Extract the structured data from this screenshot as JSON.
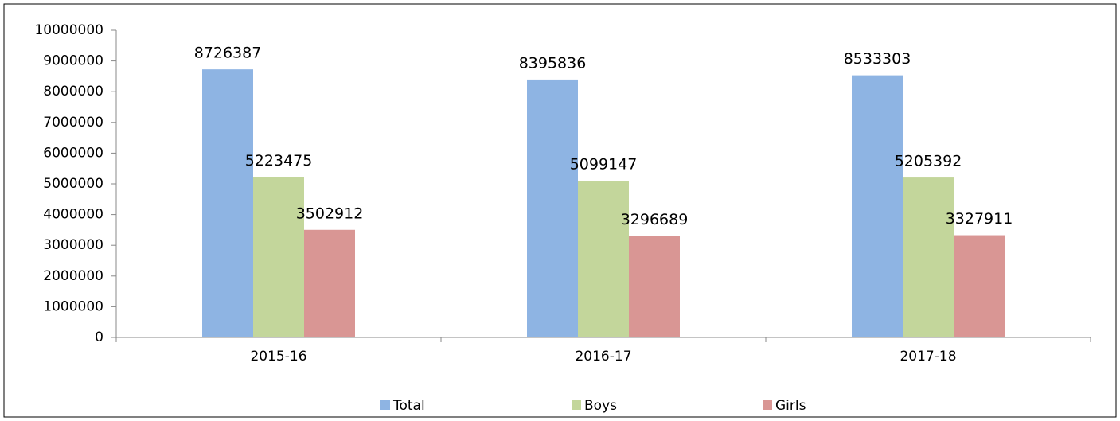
{
  "chart_data": {
    "type": "bar",
    "categories": [
      "2015-16",
      "2016-17",
      "2017-18"
    ],
    "series": [
      {
        "name": "Total",
        "color": "#8eb4e3",
        "values": [
          8726387,
          8395836,
          8533303
        ]
      },
      {
        "name": "Boys",
        "color": "#c3d69b",
        "values": [
          5223475,
          5099147,
          5205392
        ]
      },
      {
        "name": "Girls",
        "color": "#d99694",
        "values": [
          3502912,
          3296689,
          3327911
        ]
      }
    ],
    "ylim": [
      0,
      10000000
    ],
    "yticks": [
      0,
      1000000,
      2000000,
      3000000,
      4000000,
      5000000,
      6000000,
      7000000,
      8000000,
      9000000,
      10000000
    ],
    "grid": false,
    "legend": "bottom"
  }
}
